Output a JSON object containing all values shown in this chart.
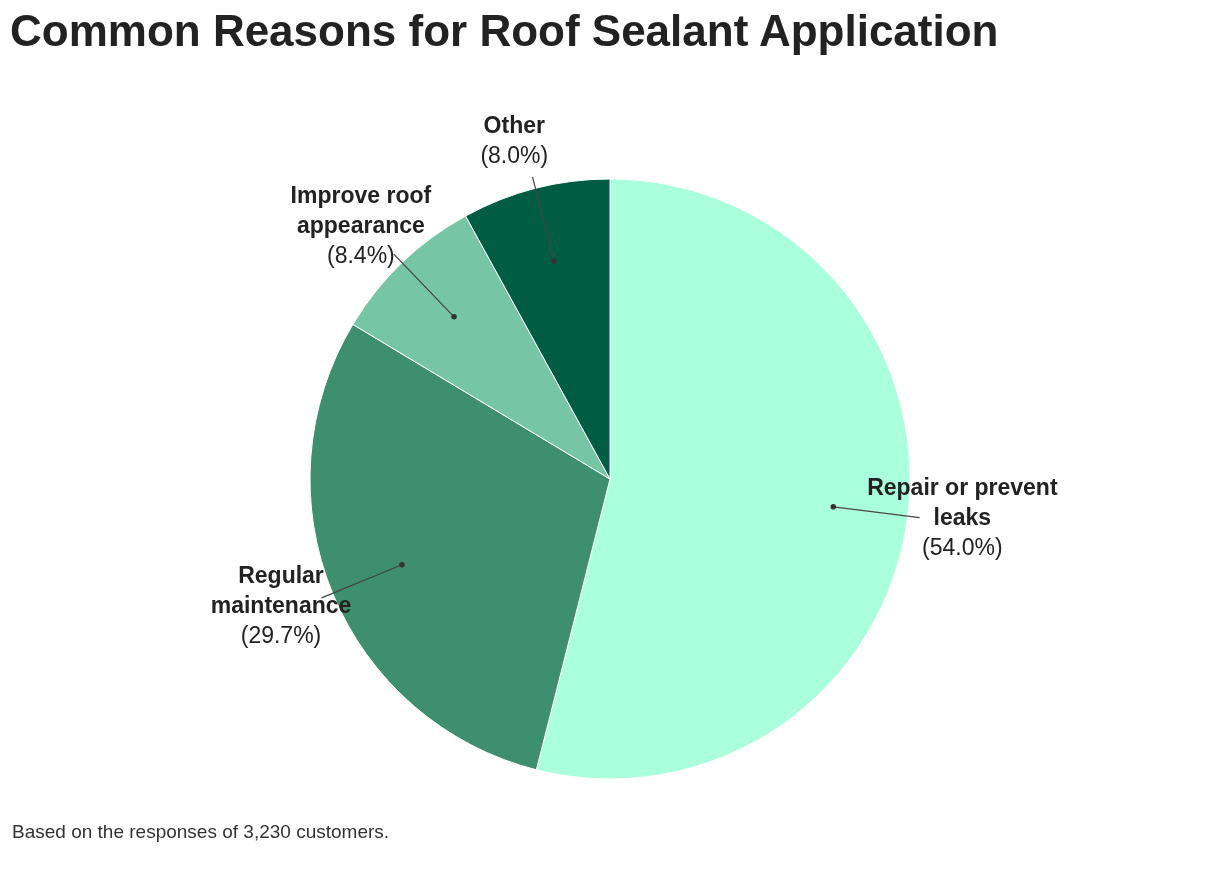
{
  "chart_data": {
    "type": "pie",
    "title": "Common Reasons for Roof Sealant Application",
    "categories": [
      "Repair or prevent leaks",
      "Regular maintenance",
      "Improve roof appearance",
      "Other"
    ],
    "values": [
      54.0,
      29.7,
      8.4,
      8.0
    ],
    "colors": [
      "#aaffdc",
      "#3d8f6f",
      "#76c6a6",
      "#005c42"
    ],
    "value_labels": [
      "(54.0%)",
      "(29.7%)",
      "(8.4%)",
      "(8.0%)"
    ],
    "annotations": [
      "Based on the responses of 3,230 customers."
    ],
    "legend": false
  }
}
